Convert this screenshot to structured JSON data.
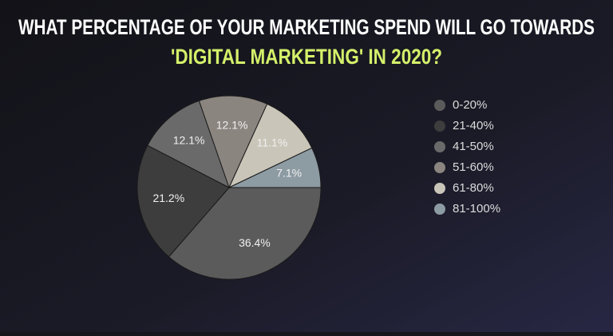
{
  "chart_data": {
    "type": "pie",
    "title": "WHAT PERCENTAGE OF YOUR MARKETING SPEND WILL GO TOWARDS",
    "subtitle": "'DIGITAL MARKETING' IN 2020?",
    "categories": [
      "0-20%",
      "21-40%",
      "41-50%",
      "51-60%",
      "61-80%",
      "81-100%"
    ],
    "values": [
      36.4,
      21.2,
      12.1,
      12.1,
      11.1,
      7.1
    ],
    "value_labels": [
      "36.4%",
      "21.2%",
      "12.1%",
      "12.1%",
      "11.1%",
      "7.1%"
    ],
    "colors": [
      "#5b5b5b",
      "#3d3d3e",
      "#6a6a6b",
      "#8b8580",
      "#c9c5b8",
      "#8d9ba3"
    ],
    "legend": "right"
  }
}
